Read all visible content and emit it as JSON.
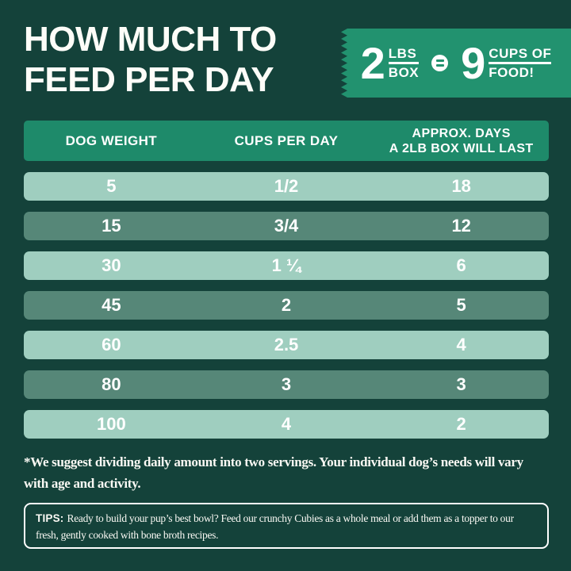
{
  "colors": {
    "background": "#14423A",
    "header_band_green": "#1E8A6A",
    "badge_green": "#22926F",
    "row_light": "#9FCEBF",
    "row_dark": "#568778",
    "text": "#FFFFFF"
  },
  "header": {
    "title_line1": "HOW MUCH TO",
    "title_line2": "FEED PER DAY"
  },
  "badge": {
    "box_value": "2",
    "box_unit_top": "LBS",
    "box_unit_bottom": "BOX",
    "cups_value": "9",
    "cups_unit_top": "CUPS OF",
    "cups_unit_bottom": "FOOD!"
  },
  "table": {
    "col1_header": "DOG WEIGHT",
    "col2_header": "CUPS PER DAY",
    "col3_header_line1": "APPROX. DAYS",
    "col3_header_line2": "A 2LB BOX WILL LAST",
    "rows": [
      {
        "cells": [
          "5",
          "1/2",
          "18"
        ]
      },
      {
        "cells": [
          "15",
          "3/4",
          "12"
        ]
      },
      {
        "cells": [
          "30",
          "1 ¼",
          "6"
        ]
      },
      {
        "cells": [
          "45",
          "2",
          "5"
        ]
      },
      {
        "cells": [
          "60",
          "2.5",
          "4"
        ]
      },
      {
        "cells": [
          "80",
          "3",
          "3"
        ]
      },
      {
        "cells": [
          "100",
          "4",
          "2"
        ]
      }
    ]
  },
  "footnote": "*We suggest dividing daily amount into two servings. Your individual dog’s needs will vary with age and activity.",
  "tips": {
    "label": "TIPS:",
    "text": "Ready to build your pup’s best bowl? Feed our crunchy Cubies as a whole meal or add them as a topper to our fresh, gently cooked with bone broth recipes."
  },
  "chart_data": {
    "type": "table",
    "title": "HOW MUCH TO FEED PER DAY",
    "columns": [
      "DOG WEIGHT",
      "CUPS PER DAY",
      "APPROX. DAYS A 2LB BOX WILL LAST"
    ],
    "rows": [
      [
        5,
        "1/2",
        18
      ],
      [
        15,
        "3/4",
        12
      ],
      [
        30,
        "1 1/4",
        6
      ],
      [
        45,
        "2",
        5
      ],
      [
        60,
        "2.5",
        4
      ],
      [
        80,
        "3",
        3
      ],
      [
        100,
        "4",
        2
      ]
    ],
    "equivalence": "2 LBS BOX = 9 CUPS OF FOOD!",
    "row_shading": [
      "light",
      "dark",
      "light",
      "dark",
      "light",
      "dark",
      "light"
    ],
    "notes": [
      "*We suggest dividing daily amount into two servings. Your individual dog’s needs will vary with age and activity.",
      "TIPS: Ready to build your pup’s best bowl? Feed our crunchy Cubies as a whole meal or add them as a topper to our fresh, gently cooked with bone broth recipes."
    ]
  }
}
